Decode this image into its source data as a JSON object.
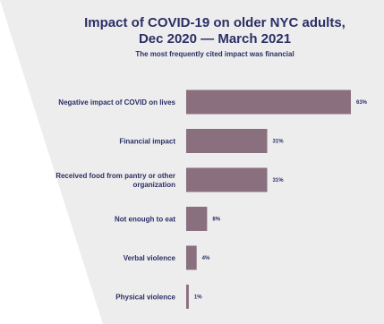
{
  "chart_data": {
    "type": "bar",
    "orientation": "horizontal",
    "title": "Impact of COVID-19 on older NYC adults,",
    "title_line2": "Dec 2020 — March 2021",
    "subtitle": "The most frequently cited impact was financial",
    "categories": [
      [
        "Negative impact of COVID on lives"
      ],
      [
        "Financial impact"
      ],
      [
        "Received food from pantry or other",
        "organization"
      ],
      [
        "Not enough to eat"
      ],
      [
        "Verbal violence"
      ],
      [
        "Physical violence"
      ]
    ],
    "values": [
      63,
      31,
      31,
      8,
      4,
      1
    ],
    "value_labels": [
      "63%",
      "31%",
      "31%",
      "8%",
      "4%",
      "1%"
    ],
    "xlim": [
      0,
      63
    ],
    "grid": false,
    "legend": "none",
    "bar_color": "#8a6f7e",
    "background_panel_color": "#ededed",
    "text_color": "#2b2f66"
  }
}
